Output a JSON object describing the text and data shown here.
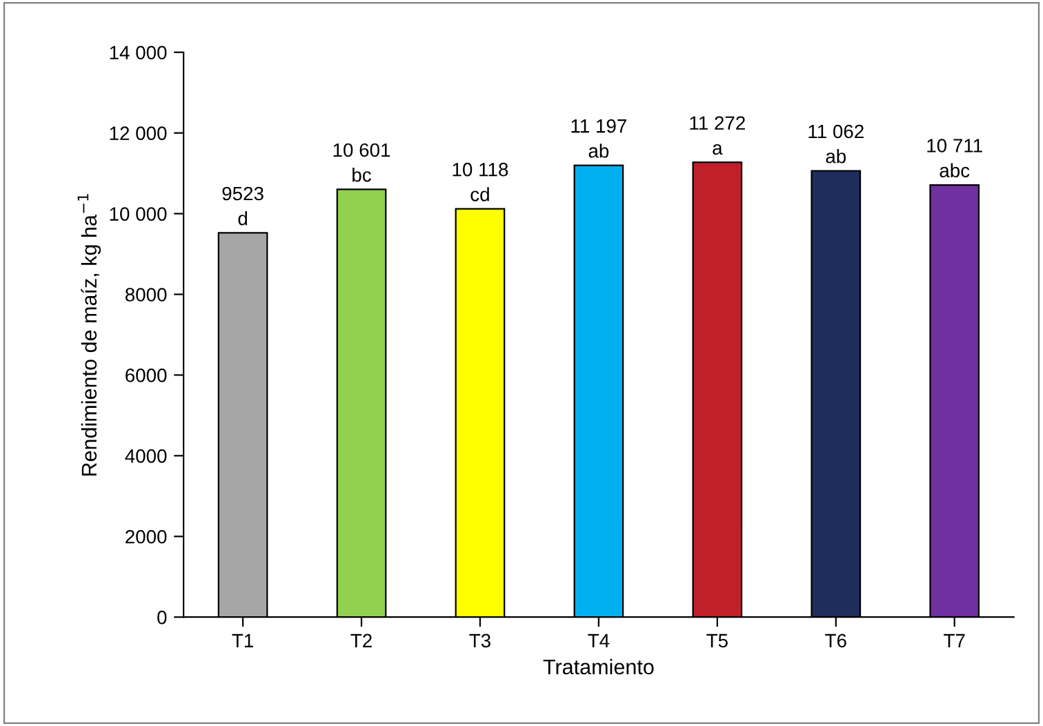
{
  "chart_data": {
    "type": "bar",
    "xlabel": "Tratamiento",
    "ylabel": "Rendimiento de maíz, kg ha$^{−1}$",
    "categories": [
      "T1",
      "T2",
      "T3",
      "T4",
      "T5",
      "T6",
      "T7"
    ],
    "values": [
      9523,
      10601,
      10118,
      11197,
      11272,
      11062,
      10711
    ],
    "colors": [
      "#a6a6a6",
      "#92d050",
      "#ffff00",
      "#00b0f0",
      "#c0202a",
      "#1f2d5c",
      "#7030a0"
    ],
    "value_labels": [
      "9523",
      "10 601",
      "10 118",
      "11 197",
      "11 272",
      "11 062",
      "10 711"
    ],
    "annotations": [
      {
        "text": "d",
        "x": "T1",
        "y": 9523
      },
      {
        "text": "bc",
        "x": "T2",
        "y": 10601
      },
      {
        "text": "cd",
        "x": "T3",
        "y": 10118
      },
      {
        "text": "ab",
        "x": "T4",
        "y": 11197
      },
      {
        "text": "a",
        "x": "T5",
        "y": 11272
      },
      {
        "text": "ab",
        "x": "T6",
        "y": 11062
      },
      {
        "text": "abc",
        "x": "T7",
        "y": 10711
      }
    ],
    "ylim": [
      0,
      14000
    ],
    "yticks": [
      0,
      2000,
      4000,
      6000,
      8000,
      {
        "value": 10000,
        "label": "10 000"
      },
      {
        "value": 12000,
        "label": "12 000"
      },
      {
        "value": 14000,
        "label": "14 000"
      }
    ],
    "grid": false,
    "legend": false
  }
}
